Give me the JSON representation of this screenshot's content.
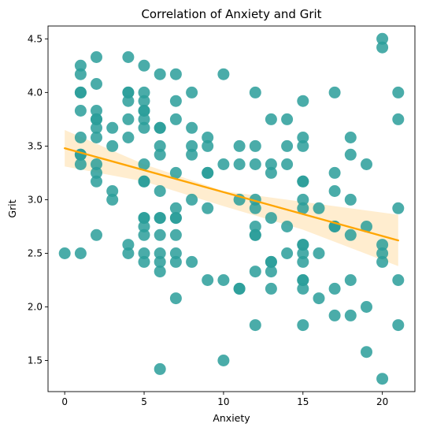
{
  "chart_data": {
    "type": "scatter",
    "title": "Correlation of Anxiety and Grit",
    "xlabel": "Anxiety",
    "ylabel": "Grit",
    "xlim": [
      -1.05,
      22.05
    ],
    "ylim": [
      1.21,
      4.62
    ],
    "xticks": [
      0,
      5,
      10,
      15,
      20
    ],
    "yticks": [
      1.5,
      2.0,
      2.5,
      3.0,
      3.5,
      4.0,
      4.5
    ],
    "xtick_labels": [
      "0",
      "5",
      "10",
      "15",
      "20"
    ],
    "ytick_labels": [
      "1.5",
      "2.0",
      "2.5",
      "3.0",
      "3.5",
      "4.0",
      "4.5"
    ],
    "grid": false,
    "legend": false,
    "colors": {
      "points": "#2a9d9a",
      "regression_line": "#ffa500",
      "confidence_band": "#ffe7bf"
    },
    "points": [
      [
        0,
        2.5
      ],
      [
        1,
        4.25
      ],
      [
        1,
        4.17
      ],
      [
        1,
        4.0
      ],
      [
        1,
        4.0
      ],
      [
        1,
        3.83
      ],
      [
        1,
        3.58
      ],
      [
        1,
        3.42
      ],
      [
        1,
        3.42
      ],
      [
        1,
        3.33
      ],
      [
        1,
        2.5
      ],
      [
        2,
        4.33
      ],
      [
        2,
        4.08
      ],
      [
        2,
        3.83
      ],
      [
        2,
        3.75
      ],
      [
        2,
        3.75
      ],
      [
        2,
        3.67
      ],
      [
        2,
        3.58
      ],
      [
        2,
        3.33
      ],
      [
        2,
        3.25
      ],
      [
        2,
        3.17
      ],
      [
        2,
        2.67
      ],
      [
        3,
        3.67
      ],
      [
        3,
        3.5
      ],
      [
        3,
        3.08
      ],
      [
        3,
        3.0
      ],
      [
        4,
        4.33
      ],
      [
        4,
        4.0
      ],
      [
        4,
        4.0
      ],
      [
        4,
        3.92
      ],
      [
        4,
        3.75
      ],
      [
        4,
        3.58
      ],
      [
        4,
        2.58
      ],
      [
        4,
        2.5
      ],
      [
        5,
        4.25
      ],
      [
        5,
        4.0
      ],
      [
        5,
        3.92
      ],
      [
        5,
        3.83
      ],
      [
        5,
        3.83
      ],
      [
        5,
        3.75
      ],
      [
        5,
        3.67
      ],
      [
        5,
        3.33
      ],
      [
        5,
        3.17
      ],
      [
        5,
        3.17
      ],
      [
        5,
        2.83
      ],
      [
        5,
        2.83
      ],
      [
        5,
        2.75
      ],
      [
        5,
        2.67
      ],
      [
        5,
        2.5
      ],
      [
        5,
        2.42
      ],
      [
        6,
        4.17
      ],
      [
        6,
        3.67
      ],
      [
        6,
        3.67
      ],
      [
        6,
        3.5
      ],
      [
        6,
        3.42
      ],
      [
        6,
        3.08
      ],
      [
        6,
        2.83
      ],
      [
        6,
        2.83
      ],
      [
        6,
        2.67
      ],
      [
        6,
        2.5
      ],
      [
        6,
        2.42
      ],
      [
        6,
        2.33
      ],
      [
        6,
        1.42
      ],
      [
        7,
        4.17
      ],
      [
        7,
        3.92
      ],
      [
        7,
        3.75
      ],
      [
        7,
        3.25
      ],
      [
        7,
        2.92
      ],
      [
        7,
        2.83
      ],
      [
        7,
        2.83
      ],
      [
        7,
        2.67
      ],
      [
        7,
        2.5
      ],
      [
        7,
        2.42
      ],
      [
        7,
        2.08
      ],
      [
        8,
        4.0
      ],
      [
        8,
        3.67
      ],
      [
        8,
        3.5
      ],
      [
        8,
        3.42
      ],
      [
        8,
        3.0
      ],
      [
        8,
        2.42
      ],
      [
        9,
        3.58
      ],
      [
        9,
        3.5
      ],
      [
        9,
        3.25
      ],
      [
        9,
        3.25
      ],
      [
        9,
        2.92
      ],
      [
        9,
        2.25
      ],
      [
        10,
        4.17
      ],
      [
        10,
        3.33
      ],
      [
        10,
        2.25
      ],
      [
        10,
        1.5
      ],
      [
        11,
        3.5
      ],
      [
        11,
        3.33
      ],
      [
        11,
        3.0
      ],
      [
        11,
        2.17
      ],
      [
        11,
        2.17
      ],
      [
        12,
        4.0
      ],
      [
        12,
        3.5
      ],
      [
        12,
        3.33
      ],
      [
        12,
        3.0
      ],
      [
        12,
        2.92
      ],
      [
        12,
        2.75
      ],
      [
        12,
        2.67
      ],
      [
        12,
        2.67
      ],
      [
        12,
        2.33
      ],
      [
        12,
        1.83
      ],
      [
        13,
        3.75
      ],
      [
        13,
        3.33
      ],
      [
        13,
        3.25
      ],
      [
        13,
        2.83
      ],
      [
        13,
        2.42
      ],
      [
        13,
        2.42
      ],
      [
        13,
        2.33
      ],
      [
        13,
        2.17
      ],
      [
        14,
        3.75
      ],
      [
        14,
        3.5
      ],
      [
        14,
        3.33
      ],
      [
        14,
        2.75
      ],
      [
        14,
        2.5
      ],
      [
        15,
        3.92
      ],
      [
        15,
        3.58
      ],
      [
        15,
        3.5
      ],
      [
        15,
        3.17
      ],
      [
        15,
        3.17
      ],
      [
        15,
        3.0
      ],
      [
        15,
        2.92
      ],
      [
        15,
        2.58
      ],
      [
        15,
        2.58
      ],
      [
        15,
        2.5
      ],
      [
        15,
        2.42
      ],
      [
        15,
        2.25
      ],
      [
        15,
        2.25
      ],
      [
        15,
        2.17
      ],
      [
        15,
        1.83
      ],
      [
        16,
        2.92
      ],
      [
        16,
        2.5
      ],
      [
        16,
        2.08
      ],
      [
        17,
        4.0
      ],
      [
        17,
        3.25
      ],
      [
        17,
        3.08
      ],
      [
        17,
        2.75
      ],
      [
        17,
        2.75
      ],
      [
        17,
        2.17
      ],
      [
        17,
        1.92
      ],
      [
        18,
        3.58
      ],
      [
        18,
        3.42
      ],
      [
        18,
        3.0
      ],
      [
        18,
        2.67
      ],
      [
        18,
        2.25
      ],
      [
        18,
        1.92
      ],
      [
        19,
        3.33
      ],
      [
        19,
        2.75
      ],
      [
        19,
        2.0
      ],
      [
        19,
        1.58
      ],
      [
        20,
        4.5
      ],
      [
        20,
        4.42
      ],
      [
        20,
        2.58
      ],
      [
        20,
        2.5
      ],
      [
        20,
        2.42
      ],
      [
        20,
        1.33
      ],
      [
        21,
        4.0
      ],
      [
        21,
        3.75
      ],
      [
        21,
        2.92
      ],
      [
        21,
        2.25
      ],
      [
        21,
        1.83
      ]
    ],
    "regression": {
      "x": [
        0,
        21
      ],
      "y": [
        3.48,
        2.62
      ]
    },
    "confidence_band": {
      "x": [
        0,
        5,
        10,
        15,
        21
      ],
      "upper": [
        3.65,
        3.33,
        3.08,
        2.98,
        2.86
      ],
      "lower": [
        3.31,
        3.17,
        2.94,
        2.72,
        2.38
      ]
    }
  }
}
